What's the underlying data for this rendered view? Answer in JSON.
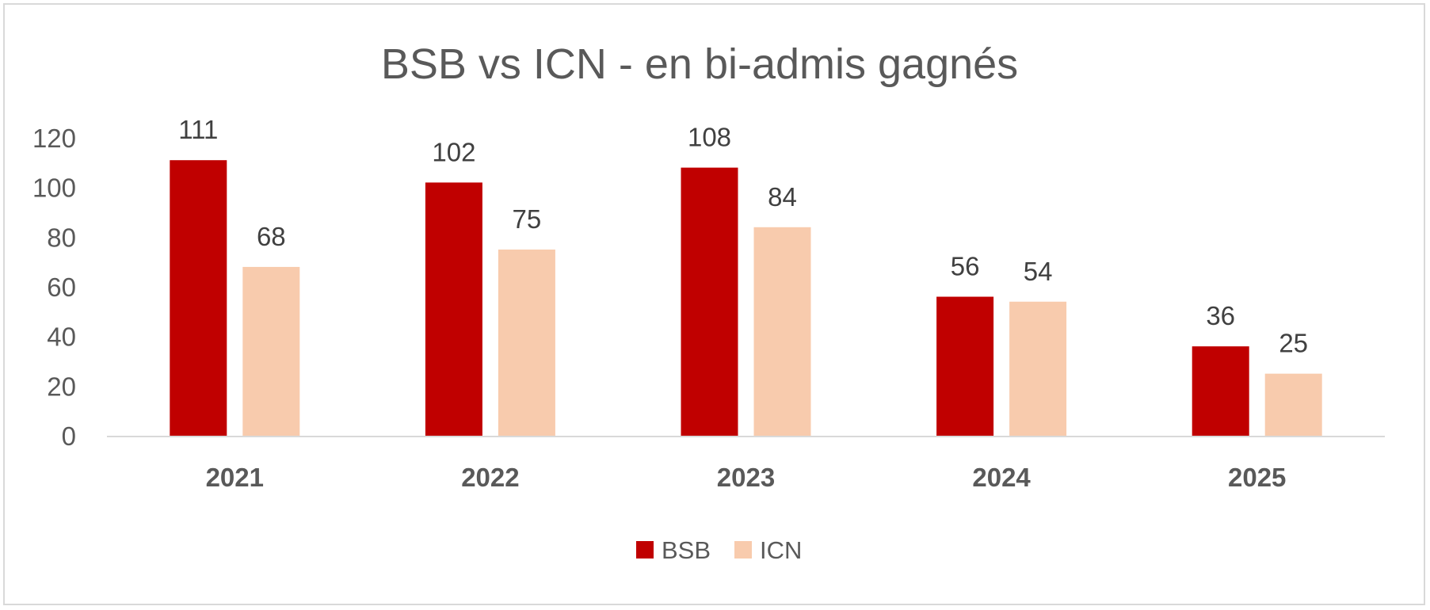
{
  "chart_data": {
    "type": "bar",
    "title": "BSB vs ICN - en bi-admis gagnés",
    "categories": [
      "2021",
      "2022",
      "2023",
      "2024",
      "2025"
    ],
    "series": [
      {
        "name": "BSB",
        "values": [
          111,
          102,
          108,
          56,
          36
        ],
        "color": "#c00000"
      },
      {
        "name": "ICN",
        "values": [
          68,
          75,
          84,
          54,
          25
        ],
        "color": "#f8cbad"
      }
    ],
    "ylim": [
      0,
      120
    ],
    "yticks": [
      "0",
      "20",
      "40",
      "60",
      "80",
      "100",
      "120"
    ],
    "grid": false,
    "legend_position": "bottom"
  }
}
